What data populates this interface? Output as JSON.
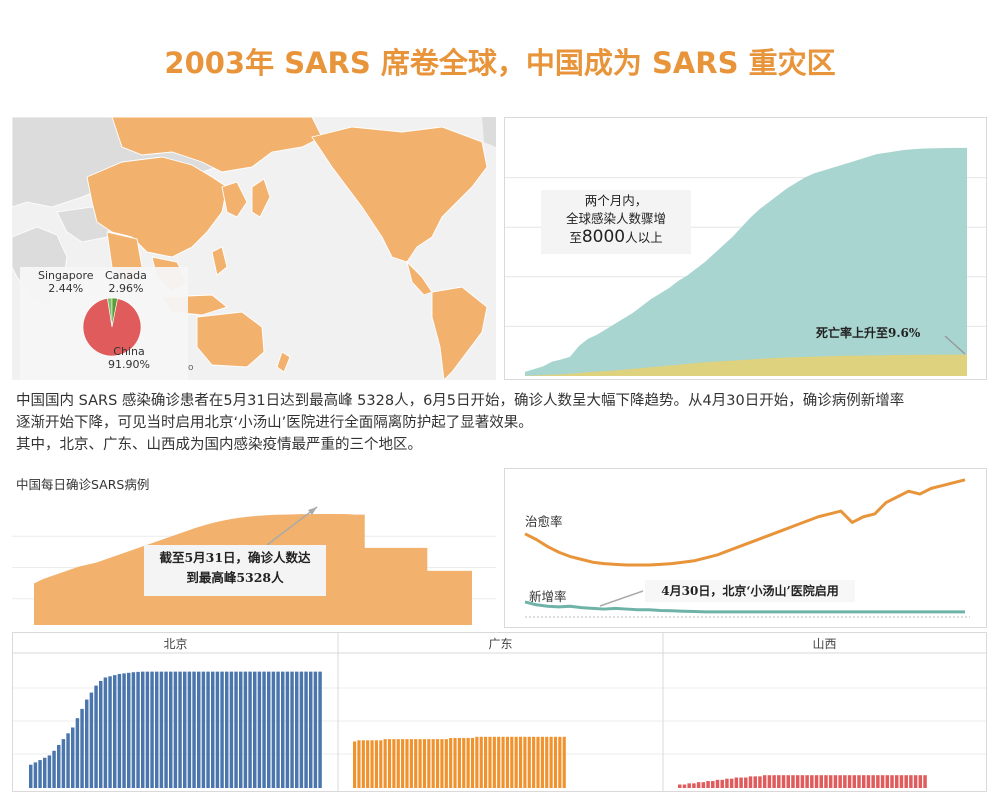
{
  "title": "2003年 SARS 席卷全球，中国成为 SARS 重灾区",
  "map_pie": {
    "legend": [
      {
        "name": "Singapore",
        "value": "2.44%"
      },
      {
        "name": "Canada",
        "value": "2.96%"
      },
      {
        "name": "China",
        "value": "91.90%"
      }
    ],
    "stray_label": "o",
    "colors": {
      "land_highlight": "#f2b26e",
      "land_other": "#dcdcdc",
      "china": "#e05c5c",
      "canada": "#5a9c3a",
      "singapore": "#7fbf6a"
    }
  },
  "global_chart": {
    "callout_line1": "两个月内，",
    "callout_line2": "全球感染人数骤增",
    "callout_line3_prefix": "至",
    "callout_line3_number": "8000",
    "callout_line3_suffix": "人以上",
    "annotation": "死亡率上升至9.6%",
    "colors": {
      "infected": "#a3d3cc",
      "deaths": "#e0d27a"
    }
  },
  "paragraph": {
    "line1": "中国国内 SARS 感染确诊患者在5月31日达到最高峰 5328人，6月5日开始，确诊人数呈大幅下降趋势。从4月30日开始，确诊病例新增率",
    "line2": "逐渐开始下降，可见当时启用北京‘小汤山’医院进行全面隔离防护起了显著效果。",
    "line3": "其中，北京、广东、山西成为国内感染疫情最严重的三个地区。"
  },
  "daily_chart": {
    "title": "中国每日确诊SARS病例",
    "callout_line1": "截至5月31日，确诊人数达",
    "callout_line2": "到最高峰5328人",
    "color": "#f2b26e"
  },
  "rates_chart": {
    "label_cure": "治愈率",
    "label_new": "新增率",
    "annotation": "4月30日，北京‘小汤山’医院启用",
    "colors": {
      "cure": "#e8943a",
      "new": "#6fb3a8"
    }
  },
  "regions": {
    "beijing": {
      "label": "北京",
      "color": "#4a76ad"
    },
    "guangdong": {
      "label": "广东",
      "color": "#f0922e"
    },
    "shanxi": {
      "label": "山西",
      "color": "#e05c5c"
    }
  },
  "chart_data": [
    {
      "type": "pie",
      "title": "",
      "labels": [
        "China",
        "Canada",
        "Singapore"
      ],
      "values": [
        91.9,
        2.96,
        2.44
      ],
      "colors": [
        "#e05c5c",
        "#5a9c3a",
        "#7fbf6a"
      ]
    },
    {
      "type": "area",
      "title": "",
      "x": [
        1,
        2,
        3,
        4,
        5,
        6,
        7,
        8,
        9,
        10,
        11,
        12,
        13,
        14,
        15,
        16,
        17,
        18,
        19,
        20,
        21,
        22,
        23,
        24,
        25,
        26,
        27,
        28,
        29,
        30,
        31,
        32,
        33,
        34,
        35,
        36,
        37,
        38,
        39,
        40,
        41,
        42,
        43,
        44,
        45,
        46,
        47,
        48,
        49,
        50
      ],
      "series": [
        {
          "values": [
            150,
            250,
            350,
            520,
            600,
            700,
            1100,
            1350,
            1500,
            1700,
            1900,
            2100,
            2300,
            2550,
            2800,
            3000,
            3200,
            3450,
            3650,
            3900,
            4150,
            4450,
            4750,
            5050,
            5400,
            5750,
            6050,
            6300,
            6550,
            6800,
            7000,
            7200,
            7350,
            7450,
            7550,
            7650,
            7750,
            7850,
            7950,
            8050,
            8100,
            8150,
            8200,
            8230,
            8250,
            8260,
            8270,
            8275,
            8280,
            8280
          ]
        },
        {
          "values": [
            10,
            20,
            30,
            50,
            60,
            80,
            110,
            140,
            160,
            180,
            200,
            230,
            260,
            290,
            320,
            350,
            380,
            410,
            440,
            470,
            500,
            520,
            540,
            560,
            580,
            600,
            620,
            640,
            660,
            670,
            680,
            690,
            700,
            710,
            720,
            730,
            735,
            740,
            745,
            750,
            755,
            760,
            765,
            768,
            770,
            772,
            774,
            775,
            776,
            776
          ]
        }
      ],
      "ylim": [
        0,
        9000
      ],
      "grid": true
    },
    {
      "type": "area",
      "title": "中国每日确诊SARS病例",
      "x": [
        1,
        2,
        3,
        4,
        5,
        6,
        7,
        8,
        9,
        10,
        11,
        12,
        13,
        14,
        15,
        16,
        17,
        18,
        19,
        20,
        21,
        22,
        23,
        24,
        25,
        26,
        27,
        28,
        29,
        30,
        31,
        32,
        33,
        34,
        35,
        36,
        37,
        38,
        39,
        40,
        41,
        42,
        43,
        44,
        45,
        46,
        47,
        48,
        49,
        50
      ],
      "values": [
        2000,
        2200,
        2350,
        2500,
        2650,
        2800,
        2900,
        3000,
        3150,
        3300,
        3450,
        3600,
        3750,
        3900,
        4050,
        4200,
        4350,
        4500,
        4650,
        4780,
        4900,
        5000,
        5080,
        5150,
        5200,
        5240,
        5270,
        5290,
        5300,
        5310,
        5320,
        5325,
        5328,
        5328,
        5328,
        5320,
        5300,
        3700,
        3700,
        3700,
        3700,
        3700,
        3700,
        3700,
        2600,
        2600,
        2600,
        2600,
        2600,
        2600
      ],
      "ylim": [
        0,
        6000
      ],
      "grid": true
    },
    {
      "type": "line",
      "title": "",
      "x": [
        1,
        2,
        3,
        4,
        5,
        6,
        7,
        8,
        9,
        10,
        11,
        12,
        13,
        14,
        15,
        16,
        17,
        18,
        19,
        20,
        21,
        22,
        23,
        24,
        25,
        26,
        27,
        28,
        29,
        30,
        31,
        32,
        33,
        34,
        35,
        36,
        37,
        38,
        39,
        40
      ],
      "series": [
        {
          "name": "治愈率",
          "values": [
            0.6,
            0.56,
            0.51,
            0.47,
            0.44,
            0.42,
            0.4,
            0.39,
            0.385,
            0.38,
            0.38,
            0.38,
            0.385,
            0.39,
            0.4,
            0.41,
            0.43,
            0.45,
            0.48,
            0.51,
            0.54,
            0.57,
            0.6,
            0.63,
            0.66,
            0.69,
            0.72,
            0.74,
            0.76,
            0.68,
            0.72,
            0.74,
            0.82,
            0.86,
            0.9,
            0.88,
            0.92,
            0.94,
            0.96,
            0.98
          ]
        },
        {
          "name": "新增率",
          "values": [
            0.12,
            0.1,
            0.09,
            0.085,
            0.09,
            0.08,
            0.075,
            0.07,
            0.075,
            0.07,
            0.065,
            0.065,
            0.06,
            0.058,
            0.055,
            0.053,
            0.05,
            0.05,
            0.05,
            0.05,
            0.05,
            0.05,
            0.05,
            0.05,
            0.05,
            0.05,
            0.05,
            0.05,
            0.05,
            0.05,
            0.05,
            0.05,
            0.05,
            0.05,
            0.05,
            0.05,
            0.05,
            0.05,
            0.05,
            0.05
          ]
        }
      ],
      "ylim": [
        0,
        1
      ],
      "grid": false
    },
    {
      "type": "bar",
      "title": "",
      "facets": [
        "北京",
        "广东",
        "山西"
      ],
      "series": [
        {
          "values": [
            200,
            220,
            240,
            260,
            280,
            320,
            370,
            420,
            470,
            520,
            600,
            680,
            760,
            820,
            880,
            920,
            950,
            960,
            970,
            980,
            985,
            990,
            995,
            998,
            1000,
            1000,
            1000,
            1000,
            1000,
            1000,
            1000,
            1000,
            1000,
            1000,
            1000,
            1000,
            1000,
            1000,
            1000,
            1000,
            1000,
            1000,
            1000,
            1000,
            1000,
            1000,
            1000,
            1000,
            1000,
            1000,
            1000,
            1000,
            1000,
            1000,
            1000,
            1000,
            1000,
            1000,
            1000,
            1000,
            1000,
            1000,
            1000
          ]
        },
        {
          "values": [
            400,
            410,
            410,
            410,
            410,
            410,
            410,
            420,
            420,
            420,
            420,
            420,
            420,
            420,
            420,
            420,
            420,
            420,
            420,
            420,
            420,
            420,
            430,
            430,
            430,
            430,
            430,
            430,
            440,
            440,
            440,
            440,
            440,
            440,
            440,
            440,
            440,
            440,
            440,
            440,
            440,
            440,
            440,
            440,
            440,
            440,
            440,
            440,
            440
          ]
        },
        {
          "values": [
            30,
            30,
            40,
            40,
            50,
            50,
            60,
            60,
            70,
            70,
            80,
            80,
            90,
            90,
            90,
            100,
            100,
            100,
            110,
            110,
            110,
            110,
            110,
            110,
            110,
            110,
            110,
            110,
            110,
            110,
            110,
            110,
            110,
            110,
            110,
            110,
            110,
            110,
            110,
            110,
            110,
            110,
            110,
            110,
            110,
            110,
            110,
            110,
            110,
            110,
            110,
            110,
            110
          ]
        }
      ],
      "ylim": [
        0,
        1100
      ],
      "grid": true
    }
  ]
}
